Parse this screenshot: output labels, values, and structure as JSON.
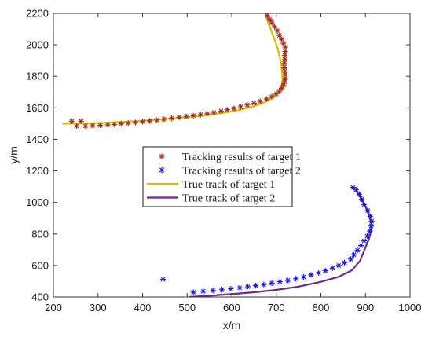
{
  "chart_data": {
    "type": "scatter",
    "xlabel": "x/m",
    "ylabel": "y/m",
    "xlim": [
      200,
      1000
    ],
    "ylim": [
      400,
      2200
    ],
    "xticks": [
      200,
      300,
      400,
      500,
      600,
      700,
      800,
      900,
      1000
    ],
    "yticks": [
      400,
      600,
      800,
      1000,
      1200,
      1400,
      1600,
      1800,
      2000,
      2200
    ],
    "grid": false,
    "legend_position": "center",
    "colors": {
      "tracking1": "#a0301c",
      "tracking2": "#1a1ad8",
      "true1": "#e0b800",
      "true2": "#6a2a90"
    },
    "series": [
      {
        "name": "Tracking results of target 1",
        "kind": "markers",
        "marker": "*",
        "color": "#a0301c",
        "points": [
          [
            241,
            1515
          ],
          [
            252,
            1485
          ],
          [
            262,
            1515
          ],
          [
            272,
            1484
          ],
          [
            288,
            1487
          ],
          [
            305,
            1489
          ],
          [
            322,
            1492
          ],
          [
            337,
            1495
          ],
          [
            352,
            1500
          ],
          [
            368,
            1503
          ],
          [
            384,
            1507
          ],
          [
            400,
            1512
          ],
          [
            416,
            1517
          ],
          [
            432,
            1522
          ],
          [
            448,
            1528
          ],
          [
            465,
            1534
          ],
          [
            482,
            1540
          ],
          [
            498,
            1546
          ],
          [
            514,
            1551
          ],
          [
            530,
            1557
          ],
          [
            545,
            1563
          ],
          [
            560,
            1571
          ],
          [
            576,
            1580
          ],
          [
            590,
            1588
          ],
          [
            605,
            1597
          ],
          [
            620,
            1607
          ],
          [
            635,
            1618
          ],
          [
            650,
            1630
          ],
          [
            664,
            1642
          ],
          [
            678,
            1656
          ],
          [
            690,
            1671
          ],
          [
            700,
            1688
          ],
          [
            707,
            1706
          ],
          [
            712,
            1725
          ],
          [
            716,
            1745
          ],
          [
            719,
            1766
          ],
          [
            720,
            1787
          ],
          [
            720,
            1810
          ],
          [
            719,
            1833
          ],
          [
            718,
            1858
          ],
          [
            718,
            1882
          ],
          [
            719,
            1907
          ],
          [
            719,
            1933
          ],
          [
            720,
            1958
          ],
          [
            720,
            1985
          ],
          [
            716,
            2010
          ],
          [
            712,
            2035
          ],
          [
            707,
            2060
          ],
          [
            702,
            2090
          ],
          [
            696,
            2115
          ],
          [
            690,
            2140
          ],
          [
            685,
            2162
          ],
          [
            680,
            2185
          ]
        ]
      },
      {
        "name": "Tracking results of target 2",
        "kind": "markers",
        "marker": "*",
        "color": "#1a1ad8",
        "points": [
          [
            446,
            512
          ],
          [
            514,
            430
          ],
          [
            536,
            436
          ],
          [
            558,
            441
          ],
          [
            578,
            446
          ],
          [
            598,
            452
          ],
          [
            618,
            458
          ],
          [
            636,
            465
          ],
          [
            654,
            472
          ],
          [
            672,
            479
          ],
          [
            690,
            488
          ],
          [
            708,
            497
          ],
          [
            726,
            505
          ],
          [
            744,
            516
          ],
          [
            761,
            527
          ],
          [
            778,
            540
          ],
          [
            795,
            553
          ],
          [
            810,
            567
          ],
          [
            826,
            583
          ],
          [
            840,
            600
          ],
          [
            853,
            618
          ],
          [
            867,
            640
          ],
          [
            874,
            668
          ],
          [
            882,
            696
          ],
          [
            890,
            726
          ],
          [
            897,
            756
          ],
          [
            904,
            787
          ],
          [
            910,
            818
          ],
          [
            913,
            850
          ],
          [
            914,
            880
          ],
          [
            911,
            912
          ],
          [
            905,
            948
          ],
          [
            897,
            985
          ],
          [
            892,
            1020
          ],
          [
            886,
            1052
          ],
          [
            879,
            1080
          ],
          [
            872,
            1095
          ]
        ]
      },
      {
        "name": "True track of target 1",
        "kind": "line",
        "color": "#e0b800",
        "points": [
          [
            220,
            1500
          ],
          [
            260,
            1501
          ],
          [
            300,
            1504
          ],
          [
            340,
            1509
          ],
          [
            380,
            1515
          ],
          [
            420,
            1522
          ],
          [
            460,
            1531
          ],
          [
            500,
            1541
          ],
          [
            540,
            1553
          ],
          [
            580,
            1568
          ],
          [
            620,
            1588
          ],
          [
            650,
            1610
          ],
          [
            675,
            1637
          ],
          [
            693,
            1668
          ],
          [
            705,
            1700
          ],
          [
            712,
            1740
          ],
          [
            714,
            1780
          ],
          [
            713,
            1820
          ],
          [
            711,
            1870
          ],
          [
            708,
            1920
          ],
          [
            704,
            1970
          ],
          [
            698,
            2020
          ],
          [
            690,
            2080
          ],
          [
            682,
            2140
          ],
          [
            676,
            2200
          ]
        ]
      },
      {
        "name": "True track of target 2",
        "kind": "line",
        "color": "#6a2a90",
        "points": [
          [
            505,
            400
          ],
          [
            550,
            408
          ],
          [
            600,
            418
          ],
          [
            650,
            430
          ],
          [
            700,
            445
          ],
          [
            750,
            466
          ],
          [
            800,
            496
          ],
          [
            840,
            528
          ],
          [
            870,
            570
          ],
          [
            888,
            630
          ],
          [
            898,
            700
          ],
          [
            908,
            770
          ],
          [
            913,
            820
          ],
          [
            913,
            870
          ],
          [
            908,
            920
          ],
          [
            900,
            975
          ],
          [
            890,
            1025
          ],
          [
            878,
            1080
          ]
        ]
      }
    ]
  }
}
